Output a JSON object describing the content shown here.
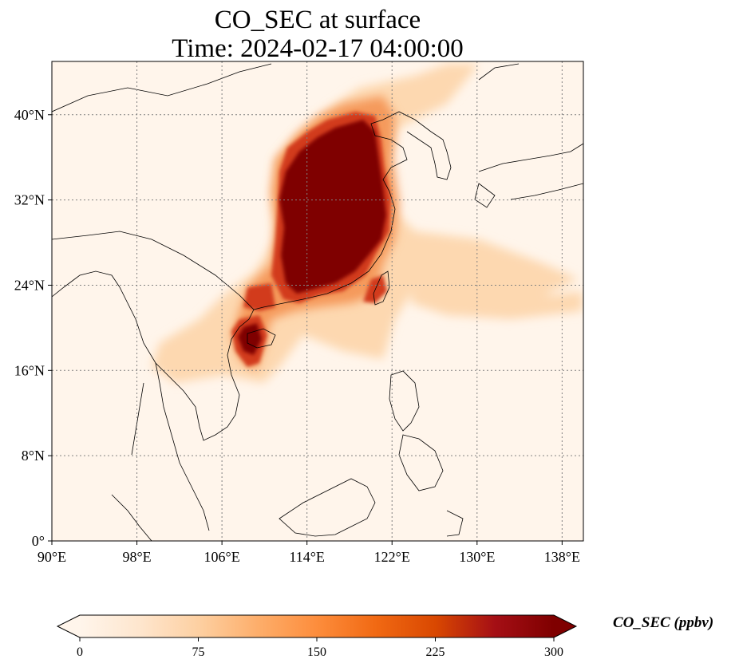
{
  "title": {
    "line1": "CO_SEC at surface",
    "line2": "Time: 2024-02-17 04:00:00"
  },
  "map": {
    "extent": {
      "lon": [
        90,
        140
      ],
      "lat": [
        0,
        45
      ]
    },
    "lon_ticks": [
      {
        "value": 90,
        "label": "90°E"
      },
      {
        "value": 98,
        "label": "98°E"
      },
      {
        "value": 106,
        "label": "106°E"
      },
      {
        "value": 114,
        "label": "114°E"
      },
      {
        "value": 122,
        "label": "122°E"
      },
      {
        "value": 130,
        "label": "130°E"
      },
      {
        "value": 138,
        "label": "138°E"
      }
    ],
    "lat_ticks": [
      {
        "value": 0,
        "label": "0°"
      },
      {
        "value": 8,
        "label": "8°N"
      },
      {
        "value": 16,
        "label": "16°N"
      },
      {
        "value": 24,
        "label": "24°N"
      },
      {
        "value": 32,
        "label": "32°N"
      },
      {
        "value": 40,
        "label": "40°N"
      }
    ],
    "gridlines": true,
    "colors": {
      "background": "#fff5eb",
      "level_low": "#fdd8b0",
      "level_mid": "#f59a5c",
      "level_high": "#d23b1f",
      "level_max": "#7f0000",
      "coastline": "#000000",
      "grid": "#808080"
    }
  },
  "colorbar": {
    "label": "CO_SEC (ppbv)",
    "min": 0,
    "max": 300,
    "ticks": [
      {
        "value": 0,
        "label": "0"
      },
      {
        "value": 75,
        "label": "75"
      },
      {
        "value": 150,
        "label": "150"
      },
      {
        "value": 225,
        "label": "225"
      },
      {
        "value": 300,
        "label": "300"
      }
    ],
    "stops": [
      "#fff5eb",
      "#fee6ce",
      "#fdd0a2",
      "#fdae6b",
      "#fd8d3c",
      "#f16913",
      "#d94801",
      "#a50f15",
      "#7f0000"
    ],
    "extend": "both"
  }
}
